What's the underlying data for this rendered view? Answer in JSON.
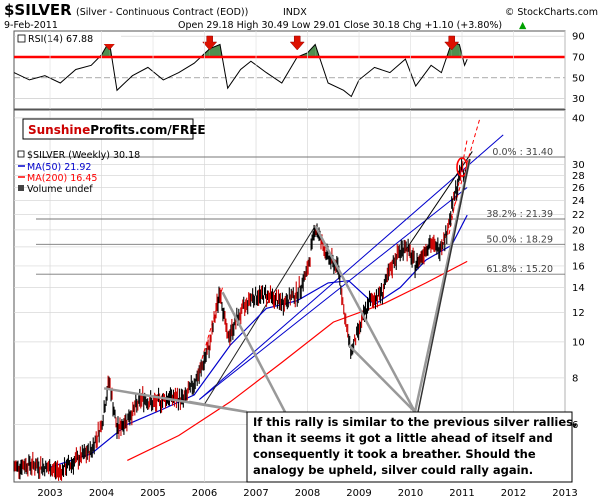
{
  "header": {
    "symbol": "$SILVER",
    "description": "(Silver - Continuous Contract (EOD))",
    "exchange": "INDX",
    "date": "9-Feb-2011",
    "quote": "Open 29.18  High 30.49  Low 29.01  Close 30.18  Chg +1.10 (+3.80%)",
    "copyright": "© StockCharts.com",
    "quote_arrow": "▲"
  },
  "rsi": {
    "label": "RSI(14) 67.88",
    "levels": [
      "90",
      "70",
      "50",
      "30"
    ],
    "overbought_line": 70,
    "mid_line": 50,
    "arrow_years": [
      2004.15,
      2006.1,
      2007.8,
      2010.8
    ]
  },
  "brand": {
    "part1": "Sunshine",
    "part2": "Profits.com/FREE"
  },
  "legend": {
    "price": "$SILVER (Weekly) 30.18",
    "ma50": "MA(50) 21.92",
    "ma200": "MA(200) 16.45",
    "volume": "Volume undef"
  },
  "fib_levels": [
    {
      "label": "0.0% : 31.40",
      "value": 31.4
    },
    {
      "label": "38.2% : 21.39",
      "value": 21.39
    },
    {
      "label": "50.0% : 18.29",
      "value": 18.29
    },
    {
      "label": "61.8% : 15.20",
      "value": 15.2
    }
  ],
  "annotation": {
    "lines": [
      "If this rally is similar to the previous silver rallies,",
      "than it seems it got a little ahead of itself and",
      "consequently it took a breather. Should the",
      "analogy be upheld, silver could rally again."
    ]
  },
  "chart_data": {
    "type": "line",
    "x_axis": {
      "ticks": [
        "2003",
        "2004",
        "2005",
        "2006",
        "2007",
        "2008",
        "2009",
        "2010",
        "2011",
        "2012",
        "2013"
      ],
      "range": [
        2002.3,
        2013
      ]
    },
    "y_axis": {
      "scale": "log",
      "ticks": [
        "6",
        "8",
        "10",
        "12",
        "14",
        "16",
        "18",
        "20",
        "22",
        "24",
        "26",
        "28",
        "30",
        "40"
      ],
      "range": [
        4.2,
        42
      ]
    },
    "series": [
      {
        "name": "$SILVER (Weekly)",
        "color": "#000000",
        "points": [
          [
            2002.3,
            4.6
          ],
          [
            2002.6,
            4.7
          ],
          [
            2002.9,
            4.6
          ],
          [
            2003.2,
            4.5
          ],
          [
            2003.5,
            4.8
          ],
          [
            2003.8,
            5.1
          ],
          [
            2004.0,
            6.0
          ],
          [
            2004.15,
            7.9
          ],
          [
            2004.3,
            5.8
          ],
          [
            2004.5,
            6.2
          ],
          [
            2004.8,
            7.1
          ],
          [
            2005.0,
            6.8
          ],
          [
            2005.3,
            7.1
          ],
          [
            2005.6,
            7.0
          ],
          [
            2005.9,
            8.2
          ],
          [
            2006.1,
            9.8
          ],
          [
            2006.3,
            13.8
          ],
          [
            2006.45,
            10.2
          ],
          [
            2006.6,
            11.3
          ],
          [
            2006.9,
            13.2
          ],
          [
            2007.2,
            13.4
          ],
          [
            2007.5,
            12.7
          ],
          [
            2007.8,
            13.5
          ],
          [
            2008.0,
            15.5
          ],
          [
            2008.15,
            20.5
          ],
          [
            2008.4,
            16.8
          ],
          [
            2008.6,
            15.8
          ],
          [
            2008.75,
            11.0
          ],
          [
            2008.85,
            9.4
          ],
          [
            2009.0,
            10.8
          ],
          [
            2009.2,
            12.8
          ],
          [
            2009.45,
            13.6
          ],
          [
            2009.7,
            16.8
          ],
          [
            2009.9,
            18.2
          ],
          [
            2010.1,
            16.0
          ],
          [
            2010.35,
            18.4
          ],
          [
            2010.55,
            17.8
          ],
          [
            2010.7,
            19.6
          ],
          [
            2010.85,
            24.5
          ],
          [
            2010.95,
            27.5
          ],
          [
            2011.0,
            29.8
          ],
          [
            2011.05,
            27.2
          ],
          [
            2011.1,
            30.18
          ]
        ]
      },
      {
        "name": "MA(50)",
        "color": "#0000cc",
        "points": [
          [
            2003.0,
            4.6
          ],
          [
            2003.8,
            5.0
          ],
          [
            2004.5,
            6.0
          ],
          [
            2005.2,
            6.6
          ],
          [
            2005.8,
            7.2
          ],
          [
            2006.5,
            9.8
          ],
          [
            2007.2,
            12.3
          ],
          [
            2007.8,
            12.9
          ],
          [
            2008.4,
            14.4
          ],
          [
            2008.8,
            14.6
          ],
          [
            2009.3,
            12.6
          ],
          [
            2009.8,
            14.0
          ],
          [
            2010.3,
            16.6
          ],
          [
            2010.8,
            18.2
          ],
          [
            2011.1,
            21.92
          ]
        ]
      },
      {
        "name": "MA(200)",
        "color": "#ff0000",
        "points": [
          [
            2004.5,
            4.8
          ],
          [
            2005.5,
            5.6
          ],
          [
            2006.5,
            6.9
          ],
          [
            2007.5,
            8.8
          ],
          [
            2008.5,
            11.3
          ],
          [
            2009.5,
            12.7
          ],
          [
            2010.3,
            14.4
          ],
          [
            2011.1,
            16.45
          ]
        ]
      }
    ],
    "rsi_series": {
      "name": "RSI(14)",
      "points": [
        [
          2002.3,
          55
        ],
        [
          2002.6,
          48
        ],
        [
          2002.9,
          52
        ],
        [
          2003.2,
          45
        ],
        [
          2003.5,
          58
        ],
        [
          2003.8,
          62
        ],
        [
          2004.0,
          72
        ],
        [
          2004.15,
          85
        ],
        [
          2004.3,
          38
        ],
        [
          2004.6,
          52
        ],
        [
          2004.9,
          60
        ],
        [
          2005.2,
          48
        ],
        [
          2005.5,
          55
        ],
        [
          2005.8,
          64
        ],
        [
          2006.1,
          78
        ],
        [
          2006.3,
          82
        ],
        [
          2006.45,
          40
        ],
        [
          2006.7,
          58
        ],
        [
          2006.9,
          66
        ],
        [
          2007.2,
          55
        ],
        [
          2007.5,
          45
        ],
        [
          2007.8,
          70
        ],
        [
          2008.0,
          74
        ],
        [
          2008.15,
          82
        ],
        [
          2008.4,
          45
        ],
        [
          2008.7,
          38
        ],
        [
          2008.85,
          32
        ],
        [
          2009.0,
          48
        ],
        [
          2009.3,
          60
        ],
        [
          2009.6,
          55
        ],
        [
          2009.9,
          68
        ],
        [
          2010.1,
          42
        ],
        [
          2010.4,
          62
        ],
        [
          2010.6,
          55
        ],
        [
          2010.8,
          84
        ],
        [
          2010.95,
          82
        ],
        [
          2011.05,
          62
        ],
        [
          2011.1,
          67.88
        ]
      ]
    },
    "fib_values": [
      31.4,
      21.39,
      18.29,
      15.2
    ],
    "grid": true
  }
}
